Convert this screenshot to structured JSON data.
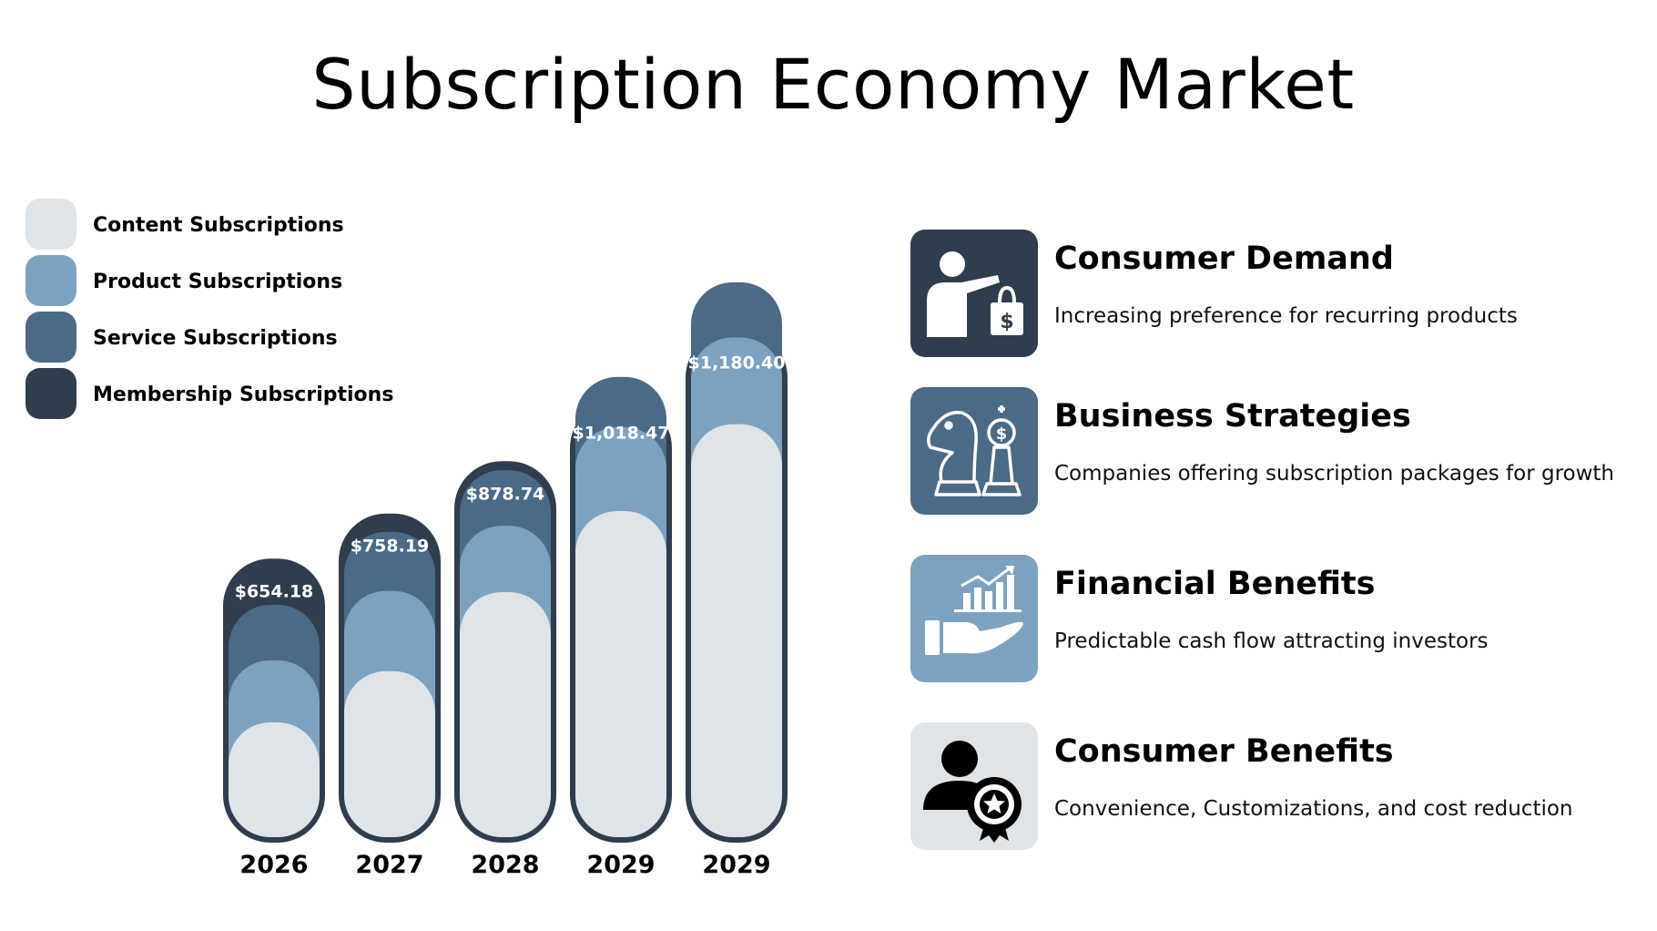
{
  "title": "Subscription Economy Market",
  "legend": [
    {
      "label": "Content Subscriptions",
      "color": "#dfe4e8"
    },
    {
      "label": "Product Subscriptions",
      "color": "#7da2bf"
    },
    {
      "label": "Service Subscriptions",
      "color": "#4a6a86"
    },
    {
      "label": "Membership Subscriptions",
      "color": "#2f3d4d"
    }
  ],
  "chart_data": {
    "type": "bar",
    "stacked": true,
    "categories": [
      "2026",
      "2027",
      "2028",
      "2029",
      "2029"
    ],
    "totals": [
      654.18,
      758.19,
      878.74,
      1018.47,
      1180.4
    ],
    "total_labels": [
      "$654.18",
      "$758.19",
      "$878.74",
      "$1,018.47",
      "$1,180.40"
    ],
    "series": [
      {
        "name": "Content Subscriptions",
        "color": "#dfe4e8",
        "values": [
          277,
          395,
          577,
          764,
          964
        ]
      },
      {
        "name": "Product Subscriptions",
        "color": "#7da2bf",
        "values": [
          143,
          185,
          153,
          193,
          200
        ]
      },
      {
        "name": "Service Subscriptions",
        "color": "#4a6a86",
        "values": [
          128,
          136,
          128,
          116,
          127
        ]
      },
      {
        "name": "Membership Subscriptions",
        "color": "#2f3d4d",
        "values": [
          106.18,
          42.19,
          20.74,
          -54.53,
          -110.6
        ]
      }
    ]
  },
  "factors": [
    {
      "title": "Consumer Demand",
      "description": "Increasing preference for recurring products",
      "icon": "person-shopping-bag-icon",
      "color": "#2f3d4d"
    },
    {
      "title": "Business Strategies",
      "description": "Companies offering subscription packages for growth",
      "icon": "chess-pieces-icon",
      "color": "#4a6a86"
    },
    {
      "title": "Financial Benefits",
      "description": "Predictable cash flow attracting investors",
      "icon": "hand-growth-chart-icon",
      "color": "#7da2bf"
    },
    {
      "title": "Consumer Benefits",
      "description": "Convenience, Customizations, and cost reduction",
      "icon": "person-badge-icon",
      "color": "#dfe4e8"
    }
  ]
}
